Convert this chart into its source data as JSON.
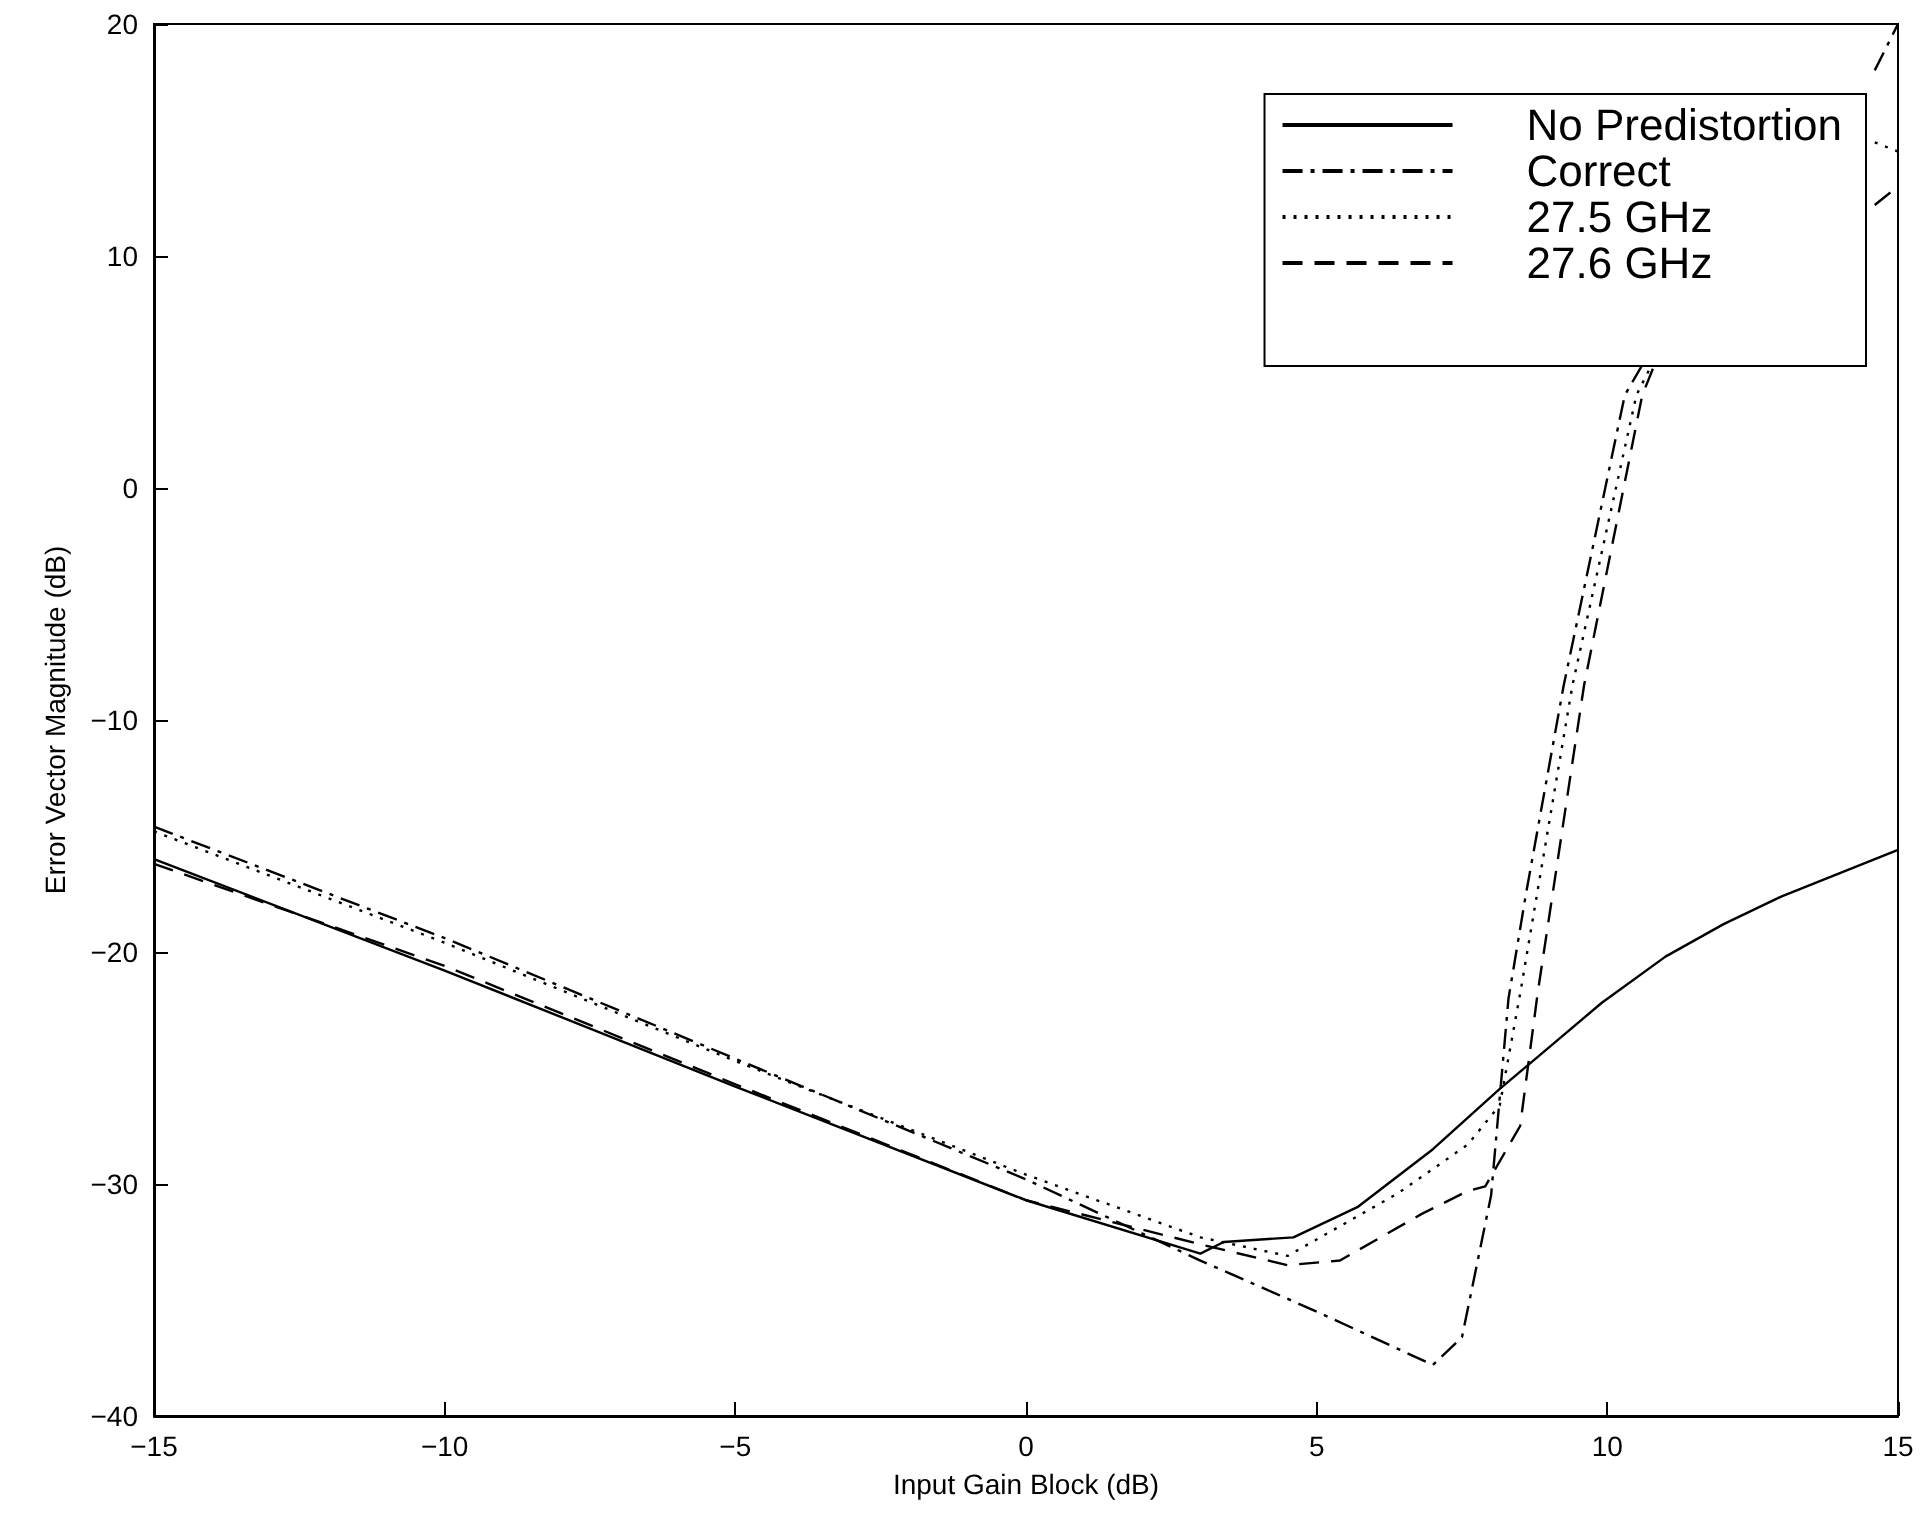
{
  "chart_data": {
    "type": "line",
    "xlabel": "Input Gain Block (dB)",
    "ylabel": "Error Vector Magnitude (dB)",
    "xlim": [
      -15,
      15
    ],
    "ylim": [
      -40,
      20
    ],
    "xticks": [
      {
        "value": -15,
        "label": "−15"
      },
      {
        "value": -10,
        "label": "−10"
      },
      {
        "value": -5,
        "label": "−5"
      },
      0,
      5,
      10,
      15
    ],
    "yticks": [
      {
        "value": -40,
        "label": "−40"
      },
      {
        "value": -30,
        "label": "−30"
      },
      {
        "value": -20,
        "label": "−20"
      },
      {
        "value": -10,
        "label": "−10"
      },
      0,
      10,
      20
    ],
    "grid": false,
    "legend": "top right",
    "marker": "none",
    "series": [
      {
        "name": "No Predistortion",
        "color": "#000000",
        "line_style": "solid",
        "x": [
          -15,
          -10,
          -5,
          0,
          3,
          3.4,
          4.6,
          5.7,
          7,
          8.15,
          9.9,
          11,
          12,
          13,
          14,
          15
        ],
        "values": [
          -16,
          -20.8,
          -25.8,
          -30.7,
          -33,
          -32.5,
          -32.3,
          -31,
          -28.5,
          -25.9,
          -22.2,
          -20.2,
          -18.8,
          -17.6,
          -16.6,
          -15.6
        ]
      },
      {
        "name": "Correct",
        "color": "#000000",
        "line_style": "dashdot",
        "x": [
          -15,
          -10,
          -5,
          0,
          3,
          5,
          7,
          7.5,
          8,
          8.3,
          8.6,
          9.25,
          10.3,
          10.6,
          12,
          14.6,
          15
        ],
        "values": [
          -14.6,
          -19.4,
          -24.6,
          -29.8,
          -33.3,
          -35.5,
          -37.8,
          -36.6,
          -30.5,
          -22,
          -17.5,
          -8.5,
          4,
          5.3,
          null,
          18,
          20
        ]
      },
      {
        "name": "27.5 GHz",
        "color": "#000000",
        "line_style": "dotted",
        "x": [
          -15,
          -10,
          -5,
          0,
          3,
          4.5,
          6.4,
          7.6,
          8.15,
          8.5,
          9.4,
          10.5,
          10.76,
          12,
          14.6,
          15
        ],
        "values": [
          -14.8,
          -19.6,
          -24.7,
          -29.6,
          -32.3,
          -33.1,
          -30.4,
          -28.3,
          -26.6,
          -21.8,
          -8.5,
          4,
          5.3,
          null,
          14.9,
          14.5
        ]
      },
      {
        "name": "27.6 GHz",
        "color": "#000000",
        "line_style": "dashed",
        "x": [
          -15,
          -10,
          -5,
          0,
          3,
          4.5,
          5.4,
          6.8,
          7.6,
          7.9,
          8.5,
          8.8,
          9.6,
          10.6,
          10.81,
          12,
          14.6,
          15
        ],
        "values": [
          -16.2,
          -20.6,
          -25.7,
          -30.7,
          -32.6,
          -33.5,
          -33.3,
          -31.3,
          -30.3,
          -30.1,
          -27.5,
          -21.8,
          -8.5,
          4,
          5.3,
          null,
          12.2,
          13
        ]
      }
    ]
  }
}
